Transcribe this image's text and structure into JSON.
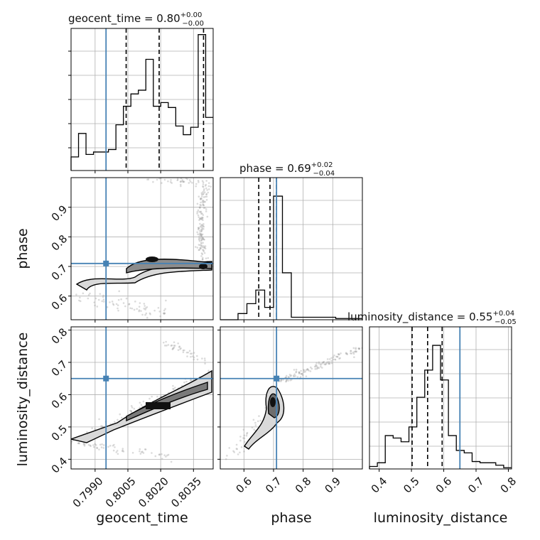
{
  "chart_data": {
    "type": "corner",
    "parameters": [
      "geocent_time",
      "phase",
      "luminosity_distance"
    ],
    "truths": {
      "geocent_time": 0.7995,
      "phase": 0.71,
      "luminosity_distance": 0.65
    },
    "titles": [
      {
        "param": "geocent_time",
        "name": "geocent_time",
        "median": "0.80",
        "plus": "+0.00",
        "minus": "−0.00"
      },
      {
        "param": "phase",
        "name": "phase",
        "median": "0.69",
        "plus": "+0.02",
        "minus": "−0.04"
      },
      {
        "param": "luminosity_distance",
        "name": "luminosity_distance",
        "median": "0.55",
        "plus": "+0.04",
        "minus": "−0.05"
      }
    ],
    "axes": {
      "geocent_time": {
        "range": [
          0.7979,
          0.8044
        ],
        "ticks": [
          0.799,
          0.8005,
          0.802,
          0.8035
        ],
        "tick_labels": [
          "0.7990",
          "0.8005",
          "0.8020",
          "0.8035"
        ]
      },
      "phase": {
        "range": [
          0.52,
          1.0
        ],
        "ticks": [
          0.6,
          0.7,
          0.8,
          0.9
        ],
        "tick_labels": [
          "0.6",
          "0.7",
          "0.8",
          "0.9"
        ]
      },
      "luminosity_distance": {
        "range": [
          0.37,
          0.81
        ],
        "ticks": [
          0.4,
          0.5,
          0.6,
          0.7,
          0.8
        ],
        "tick_labels": [
          "0.4",
          "0.5",
          "0.6",
          "0.7",
          "0.8"
        ]
      }
    },
    "histograms": [
      {
        "param": "geocent_time",
        "quantiles": [
          0.80042,
          0.80193,
          0.80396
        ],
        "ymax": 1.0,
        "counts": [
          0.11,
          0.3,
          0.13,
          0.15,
          0.15,
          0.17,
          0.37,
          0.52,
          0.62,
          0.65,
          0.9,
          0.52,
          0.55,
          0.51,
          0.36,
          0.29,
          0.35,
          1.1,
          0.43
        ]
      },
      {
        "param": "phase",
        "quantiles": [
          0.65,
          0.688,
          0.71
        ],
        "ymax": 1.0,
        "counts": [
          0.0,
          0.0,
          0.05,
          0.13,
          0.24,
          0.1,
          1.0,
          0.38,
          0.02,
          0.02,
          0.02,
          0.02,
          0.02,
          0.01,
          0.01,
          0.01
        ]
      },
      {
        "param": "luminosity_distance",
        "quantiles": [
          0.502,
          0.55,
          0.595
        ],
        "ymax": 1.0,
        "counts": [
          0.02,
          0.05,
          0.27,
          0.25,
          0.22,
          0.34,
          0.58,
          0.8,
          1.0,
          0.72,
          0.27,
          0.15,
          0.13,
          0.06,
          0.05,
          0.05,
          0.03,
          0.01
        ]
      }
    ],
    "pairs": [
      {
        "x": "geocent_time",
        "y": "phase"
      },
      {
        "x": "geocent_time",
        "y": "luminosity_distance"
      },
      {
        "x": "phase",
        "y": "luminosity_distance"
      }
    ],
    "colors": {
      "line": "#000000",
      "truth": "#4682b4",
      "grid": "#b0b0b0",
      "samples": "#999999"
    }
  }
}
